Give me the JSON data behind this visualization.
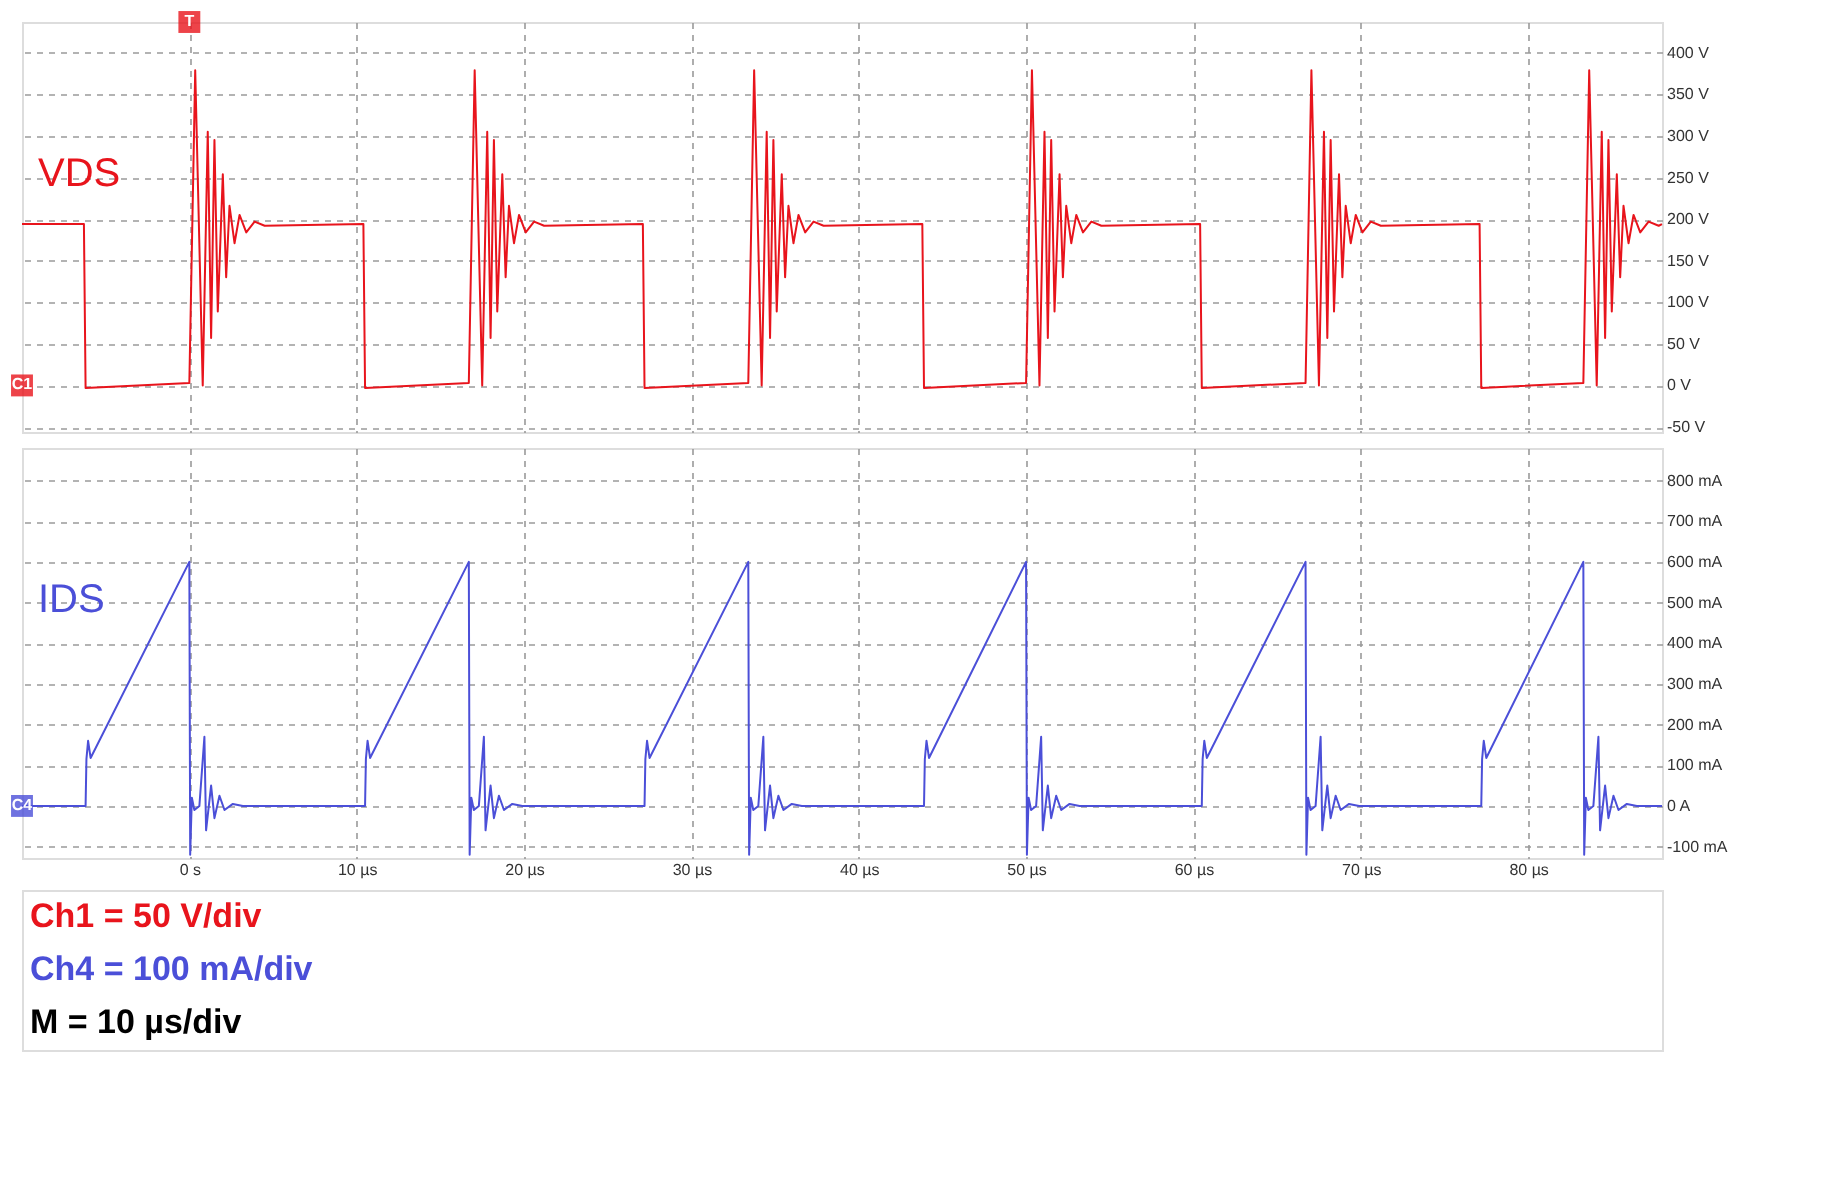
{
  "chart_data": [
    {
      "type": "line",
      "xlim": [
        -10,
        88
      ],
      "ylim": [
        -56,
        437
      ],
      "xticks": [
        0,
        10,
        20,
        30,
        40,
        50,
        60,
        70,
        80
      ],
      "yticks": [
        {
          "value": -50,
          "label": "-50 V"
        },
        {
          "value": 0,
          "label": "0 V"
        },
        {
          "value": 50,
          "label": "50 V"
        },
        {
          "value": 100,
          "label": "100 V"
        },
        {
          "value": 150,
          "label": "150 V"
        },
        {
          "value": 200,
          "label": "200 V"
        },
        {
          "value": 250,
          "label": "250 V"
        },
        {
          "value": 300,
          "label": "300 V"
        },
        {
          "value": 350,
          "label": "350 V"
        },
        {
          "value": 400,
          "label": "400 V"
        }
      ],
      "tick_labels": "y",
      "grid": true,
      "annotations": [
        {
          "text": "C1",
          "y": 0
        },
        {
          "text": "T",
          "x": 0
        }
      ],
      "series": [
        {
          "name": "VDS",
          "color": "#e8141c",
          "x": [
            -10,
            -6.3,
            -6.2,
            0,
            0.35,
            0.8,
            1.1,
            1.3,
            1.5,
            1.7,
            2.0,
            2.2,
            2.4,
            2.7,
            3.0,
            3.4,
            3.9,
            4.5,
            10.4,
            10.5,
            16.7,
            17.05,
            17.5,
            17.8,
            18.0,
            18.2,
            18.4,
            18.7,
            18.9,
            19.1,
            19.4,
            19.7,
            20.1,
            20.6,
            21.2,
            27.1,
            27.2,
            33.4,
            33.75,
            34.2,
            34.5,
            34.7,
            34.9,
            35.1,
            35.4,
            35.6,
            35.8,
            36.1,
            36.4,
            36.8,
            37.3,
            37.9,
            43.8,
            43.9,
            50,
            50.35,
            50.8,
            51.1,
            51.3,
            51.5,
            51.7,
            52.0,
            52.2,
            52.4,
            52.7,
            53.0,
            53.4,
            53.9,
            54.5,
            60.4,
            60.5,
            66.7,
            67.05,
            67.5,
            67.8,
            68.0,
            68.2,
            68.4,
            68.7,
            68.9,
            69.1,
            69.4,
            69.7,
            70.1,
            70.6,
            71.2,
            77.1,
            77.2,
            83.3,
            83.65,
            84.1,
            84.4,
            84.6,
            84.8,
            85.0,
            85.3,
            85.5,
            85.7,
            86.0,
            86.3,
            86.7,
            87.2,
            87.8,
            88
          ],
          "values": [
            194,
            194,
            -3,
            3,
            379,
            0,
            305,
            57,
            295,
            89,
            254,
            130,
            216,
            171,
            205,
            184,
            197,
            192,
            194,
            -3,
            3,
            379,
            0,
            305,
            57,
            295,
            89,
            254,
            130,
            216,
            171,
            205,
            184,
            197,
            192,
            194,
            -3,
            3,
            379,
            0,
            305,
            57,
            295,
            89,
            254,
            130,
            216,
            171,
            205,
            184,
            197,
            192,
            194,
            -3,
            3,
            379,
            0,
            305,
            57,
            295,
            89,
            254,
            130,
            216,
            171,
            205,
            184,
            197,
            192,
            194,
            -3,
            3,
            379,
            0,
            305,
            57,
            295,
            89,
            254,
            130,
            216,
            171,
            205,
            184,
            197,
            192,
            194,
            -3,
            3,
            379,
            0,
            305,
            57,
            295,
            89,
            254,
            130,
            216,
            171,
            205,
            184,
            197,
            192,
            194
          ]
        }
      ]
    },
    {
      "type": "line",
      "xlim": [
        -10,
        88
      ],
      "ylim": [
        -128,
        880
      ],
      "xticks": [
        {
          "value": 0,
          "label": "0 s"
        },
        {
          "value": 10,
          "label": "10 µs"
        },
        {
          "value": 20,
          "label": "20 µs"
        },
        {
          "value": 30,
          "label": "30 µs"
        },
        {
          "value": 40,
          "label": "40 µs"
        },
        {
          "value": 50,
          "label": "50 µs"
        },
        {
          "value": 60,
          "label": "60 µs"
        },
        {
          "value": 70,
          "label": "70 µs"
        },
        {
          "value": 80,
          "label": "80 µs"
        }
      ],
      "yticks": [
        {
          "value": -100,
          "label": "-100 mA"
        },
        {
          "value": 0,
          "label": "0 A"
        },
        {
          "value": 100,
          "label": "100 mA"
        },
        {
          "value": 200,
          "label": "200 mA"
        },
        {
          "value": 300,
          "label": "300 mA"
        },
        {
          "value": 400,
          "label": "400 mA"
        },
        {
          "value": 500,
          "label": "500 mA"
        },
        {
          "value": 600,
          "label": "600 mA"
        },
        {
          "value": 700,
          "label": "700 mA"
        },
        {
          "value": 800,
          "label": "800 mA"
        }
      ],
      "grid": true,
      "annotations": [
        {
          "text": "C4",
          "y": 0
        }
      ],
      "series": [
        {
          "name": "IDS",
          "color": "#4b4fd8",
          "x": [
            -10,
            -6.2,
            -6.15,
            -6.05,
            -5.9,
            0,
            0.05,
            0.15,
            0.3,
            0.6,
            0.9,
            1.0,
            1.3,
            1.5,
            1.8,
            2.1,
            2.6,
            3.2,
            10.5,
            10.55,
            10.65,
            10.8,
            16.7,
            16.75,
            16.85,
            17.0,
            17.3,
            17.6,
            17.7,
            18.0,
            18.2,
            18.5,
            18.8,
            19.3,
            19.9,
            27.2,
            27.25,
            27.35,
            27.5,
            33.4,
            33.45,
            33.55,
            33.7,
            34.0,
            34.3,
            34.4,
            34.7,
            34.9,
            35.2,
            35.5,
            36.0,
            36.6,
            43.9,
            43.95,
            44.05,
            44.2,
            50,
            50.05,
            50.15,
            50.3,
            50.6,
            50.9,
            51.0,
            51.3,
            51.5,
            51.8,
            52.1,
            52.6,
            53.2,
            60.5,
            60.55,
            60.65,
            60.8,
            66.7,
            66.75,
            66.85,
            67.0,
            67.3,
            67.6,
            67.7,
            68.0,
            68.2,
            68.5,
            68.8,
            69.3,
            69.9,
            77.2,
            77.25,
            77.35,
            77.5,
            83.3,
            83.35,
            83.45,
            83.6,
            83.9,
            84.2,
            84.3,
            84.6,
            84.8,
            85.1,
            85.4,
            85.9,
            86.5,
            88
          ],
          "values": [
            0,
            0,
            115,
            160,
            118,
            600,
            -120,
            20,
            -10,
            0,
            170,
            -60,
            50,
            -30,
            25,
            -10,
            5,
            0,
            0,
            115,
            160,
            118,
            600,
            -120,
            20,
            -10,
            0,
            170,
            -60,
            50,
            -30,
            25,
            -10,
            5,
            0,
            0,
            115,
            160,
            118,
            600,
            -120,
            20,
            -10,
            0,
            170,
            -60,
            50,
            -30,
            25,
            -10,
            5,
            0,
            0,
            115,
            160,
            118,
            600,
            -120,
            20,
            -10,
            0,
            170,
            -60,
            50,
            -30,
            25,
            -10,
            5,
            0,
            0,
            115,
            160,
            118,
            600,
            -120,
            20,
            -10,
            0,
            170,
            -60,
            50,
            -30,
            25,
            -10,
            5,
            0,
            0,
            115,
            160,
            118,
            600,
            -120,
            20,
            -10,
            0,
            170,
            -60,
            50,
            -30,
            25,
            -10,
            5,
            0,
            0
          ]
        }
      ]
    },
    {
      "type": "other",
      "annotations": [
        "Ch1 = 50 V/div",
        "Ch4 = 100 mA/div",
        "M = 10 µs/div"
      ]
    }
  ]
}
